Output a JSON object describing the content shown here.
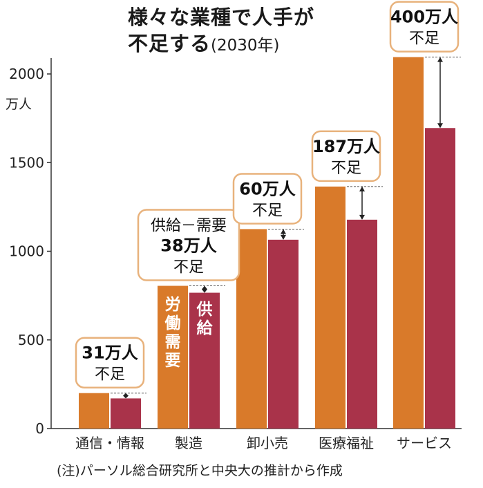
{
  "title": {
    "line1": "様々な業種で人手が",
    "line2": "不足する",
    "sub": "(2030年)"
  },
  "y_unit": "万人",
  "note": "(注)パーソル総合研究所と中央大の推計から作成",
  "colors": {
    "demand": "#d97a2a",
    "supply": "#a9334a",
    "callout_border": "#e8b27c",
    "axis": "#333333"
  },
  "chart_data": {
    "type": "bar",
    "title": "様々な業種で人手が不足する(2030年)",
    "xlabel": "",
    "ylabel": "万人",
    "ylim": [
      0,
      2100
    ],
    "yticks": [
      0,
      500,
      1000,
      1500,
      2000
    ],
    "grid": false,
    "categories": [
      "通信・情報",
      "製造",
      "卸小売",
      "医療福祉",
      "サービス"
    ],
    "series": [
      {
        "name": "労働需要",
        "values": [
          200,
          805,
          1125,
          1365,
          2095
        ]
      },
      {
        "name": "供給",
        "values": [
          170,
          766,
          1065,
          1178,
          1695
        ]
      }
    ],
    "annotations": [
      {
        "category": "通信・情報",
        "lines": [
          "31万人",
          "不足"
        ]
      },
      {
        "category": "製造",
        "lines": [
          "供給－需要",
          "38万人",
          "不足"
        ]
      },
      {
        "category": "卸小売",
        "lines": [
          "60万人",
          "不足"
        ]
      },
      {
        "category": "医療福祉",
        "lines": [
          "187万人",
          "不足"
        ]
      },
      {
        "category": "サービス",
        "lines": [
          "400万人",
          "不足"
        ]
      }
    ],
    "bar_labels": {
      "demand": "労働需要",
      "supply": "供給",
      "category": "製造"
    }
  }
}
